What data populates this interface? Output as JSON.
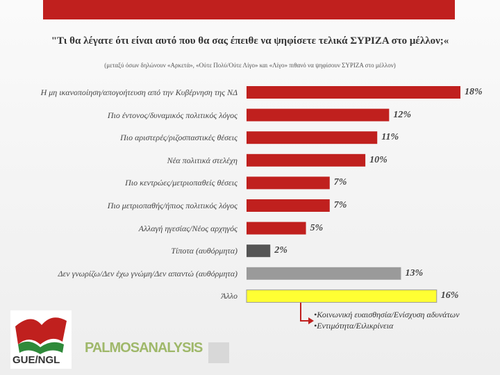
{
  "chart_data": {
    "type": "bar",
    "orientation": "horizontal",
    "title": "\"Τι θα λέγατε ότι είναι αυτό που θα σας έπειθε να ψηφίσετε τελικά ΣΥΡΙΖΑ στο μέλλον;«",
    "subtitle": "(μεταξύ όσων δηλώνουν «Αρκετά», «Ούτε Πολύ/Ούτε Λίγο» και «Λίγο» πιθανό να ψηφίσουν ΣΥΡΙΖΑ στο μέλλον)",
    "categories": [
      "Η μη ικανοποίηση/απογοήτευση από την Κυβέρνηση της ΝΔ",
      "Πιο έντονος/δυναμικός πολιτικός λόγος",
      "Πιο αριστερές/ριζοσπαστικές θέσεις",
      "Νέα πολιτικά στελέχη",
      "Πιο κεντρώες/μετριοπαθείς θέσεις",
      "Πιο μετριοπαθής/ήπιος πολιτικός λόγος",
      "Αλλαγή ηγεσίας/Νέος αρχηγός",
      "Τίποτα (αυθόρμητα)",
      "Δεν γνωρίζω/Δεν έχω γνώμη/Δεν απαντώ (αυθόρμητα)",
      "Άλλο"
    ],
    "values": [
      18,
      12,
      11,
      10,
      7,
      7,
      5,
      2,
      13,
      16
    ],
    "value_labels": [
      "18%",
      "12%",
      "11%",
      "10%",
      "7%",
      "7%",
      "5%",
      "2%",
      "13%",
      "16%"
    ],
    "colors": [
      "#c0201e",
      "#c0201e",
      "#c0201e",
      "#c0201e",
      "#c0201e",
      "#c0201e",
      "#c0201e",
      "#555555",
      "#9a9a9a",
      "#ffff33"
    ],
    "annotation": [
      "•Κοινωνική ευαισθησία/Ενίσχυση αδυνάτων",
      "•Εντιμότητα/Ειλικρίνεια"
    ]
  },
  "logos": {
    "left": "GUE/NGL",
    "right": "PALMOSANALYSIS"
  }
}
